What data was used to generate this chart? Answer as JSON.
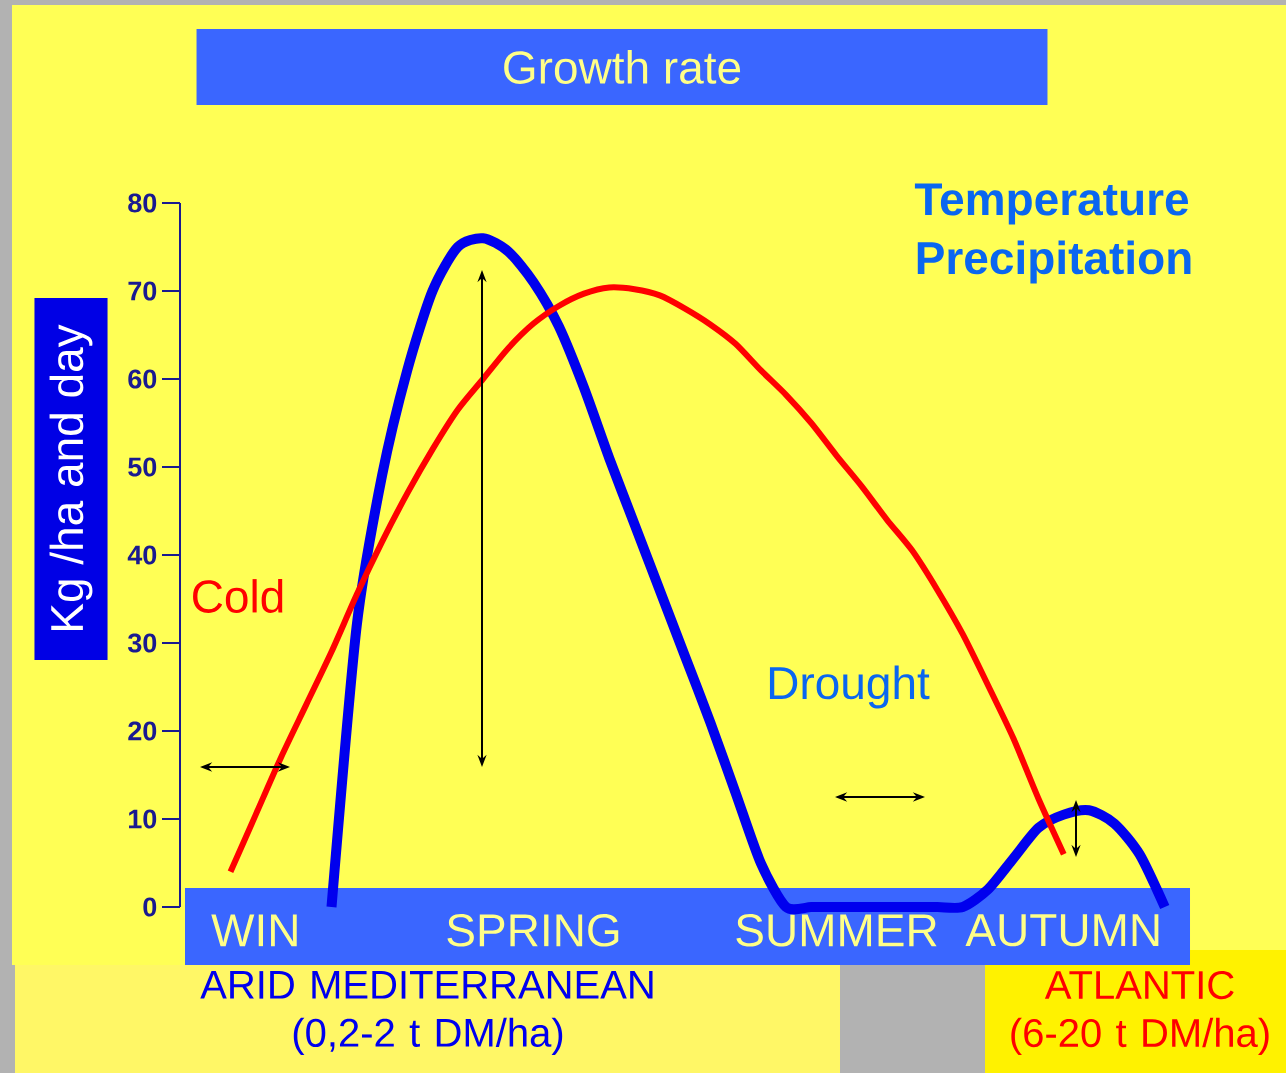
{
  "chart_data": {
    "type": "line",
    "title": "Growth rate",
    "ylabel": "Kg /ha and day",
    "annotations": [
      "Cold",
      "Drought",
      "Temperature",
      "Precipitation"
    ],
    "categories": [
      null,
      null,
      null,
      "WIN",
      null,
      null,
      null,
      null,
      null,
      null,
      null,
      null,
      null,
      null,
      "SPRING",
      null,
      null,
      null,
      null,
      null,
      null,
      null,
      null,
      null,
      null,
      null,
      "SUMMER",
      null,
      null,
      null,
      null,
      null,
      null,
      null,
      null,
      "AUTUMN",
      null,
      null,
      null,
      null,
      null
    ],
    "ylim": [
      0,
      80
    ],
    "yticks": [
      0,
      10,
      20,
      30,
      40,
      50,
      60,
      70,
      80
    ],
    "series": [
      {
        "name": "ARID MEDITERRANEAN (0,2-2 t DM/ha)",
        "color": "#0000ee",
        "values": [
          null,
          null,
          null,
          null,
          null,
          null,
          0,
          32,
          49,
          61,
          70,
          75,
          76,
          74.5,
          71,
          66,
          59,
          51,
          43.5,
          36,
          28.5,
          21,
          13,
          5,
          0,
          0,
          0,
          0,
          0,
          0,
          0,
          0,
          2,
          5.5,
          9,
          10.5,
          11,
          9.5,
          6,
          0,
          null
        ]
      },
      {
        "name": "ATLANTIC (6-20 t DM/ha)",
        "color": "#ff0000",
        "values": [
          null,
          null,
          4,
          10.5,
          17,
          23,
          29,
          35.5,
          41.5,
          47,
          52,
          56.5,
          60,
          63.5,
          66.3,
          68.3,
          69.7,
          70.4,
          70.2,
          69.5,
          68,
          66.2,
          64,
          61,
          58.2,
          55,
          51.3,
          47.8,
          44,
          40.5,
          36,
          31,
          25.2,
          19.2,
          12.3,
          6,
          null,
          null,
          null,
          null,
          null
        ]
      }
    ]
  }
}
